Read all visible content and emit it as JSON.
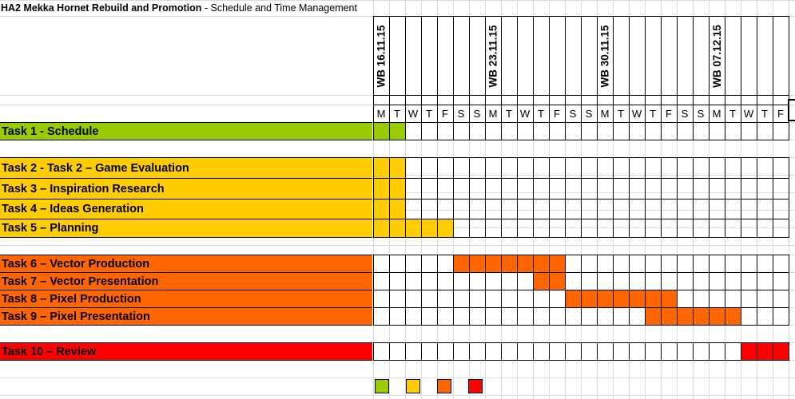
{
  "sheet": {
    "title_bold": "HA2 Mekka Hornet Rebuild and Promotion",
    "title_rest": " - Schedule and Time Management"
  },
  "weeks": [
    {
      "label": "WB 16.11.15",
      "start_day": 0
    },
    {
      "label": "WB 23.11.15",
      "start_day": 7
    },
    {
      "label": "WB 30.11.15",
      "start_day": 14
    },
    {
      "label": "WB 07.12.15",
      "start_day": 21
    }
  ],
  "days": [
    "M",
    "T",
    "W",
    "T",
    "F",
    "S",
    "S",
    "M",
    "T",
    "W",
    "T",
    "F",
    "S",
    "S",
    "M",
    "T",
    "W",
    "T",
    "F",
    "S",
    "S",
    "M",
    "T",
    "W",
    "T",
    "F"
  ],
  "colors": {
    "schedule": "#99cc00",
    "research": "#ffcc00",
    "production": "#ff6600",
    "review": "#ff0000"
  },
  "tasks": [
    {
      "label": "Task 1 - Schedule",
      "color": "schedule",
      "filled_days": [
        0,
        1
      ]
    },
    {
      "label": "Task 2 - Task 2 – Game Evaluation",
      "color": "research",
      "filled_days": [
        0,
        1
      ]
    },
    {
      "label": "Task 3 – Inspiration Research",
      "color": "research",
      "filled_days": [
        0,
        1
      ]
    },
    {
      "label": "Task 4 – Ideas Generation",
      "color": "research",
      "filled_days": [
        0,
        1
      ]
    },
    {
      "label": "Task 5 – Planning",
      "color": "research",
      "filled_days": [
        0,
        1,
        2,
        3,
        4
      ]
    },
    {
      "label": "Task 6 – Vector Production",
      "color": "production",
      "filled_days": [
        5,
        6,
        7,
        8,
        9,
        10,
        11
      ]
    },
    {
      "label": "Task 7 – Vector Presentation",
      "color": "production",
      "filled_days": [
        10,
        11
      ]
    },
    {
      "label": "Task 8 – Pixel Production",
      "color": "production",
      "filled_days": [
        12,
        13,
        14,
        15,
        16,
        17,
        18
      ]
    },
    {
      "label": "Task 9 – Pixel Presentation",
      "color": "production",
      "filled_days": [
        17,
        18,
        19,
        20,
        21,
        22
      ]
    },
    {
      "label": "Task 10 – Review",
      "color": "review",
      "filled_days": [
        23,
        24,
        25
      ]
    }
  ],
  "legend": [
    "schedule",
    "research",
    "production",
    "review"
  ]
}
